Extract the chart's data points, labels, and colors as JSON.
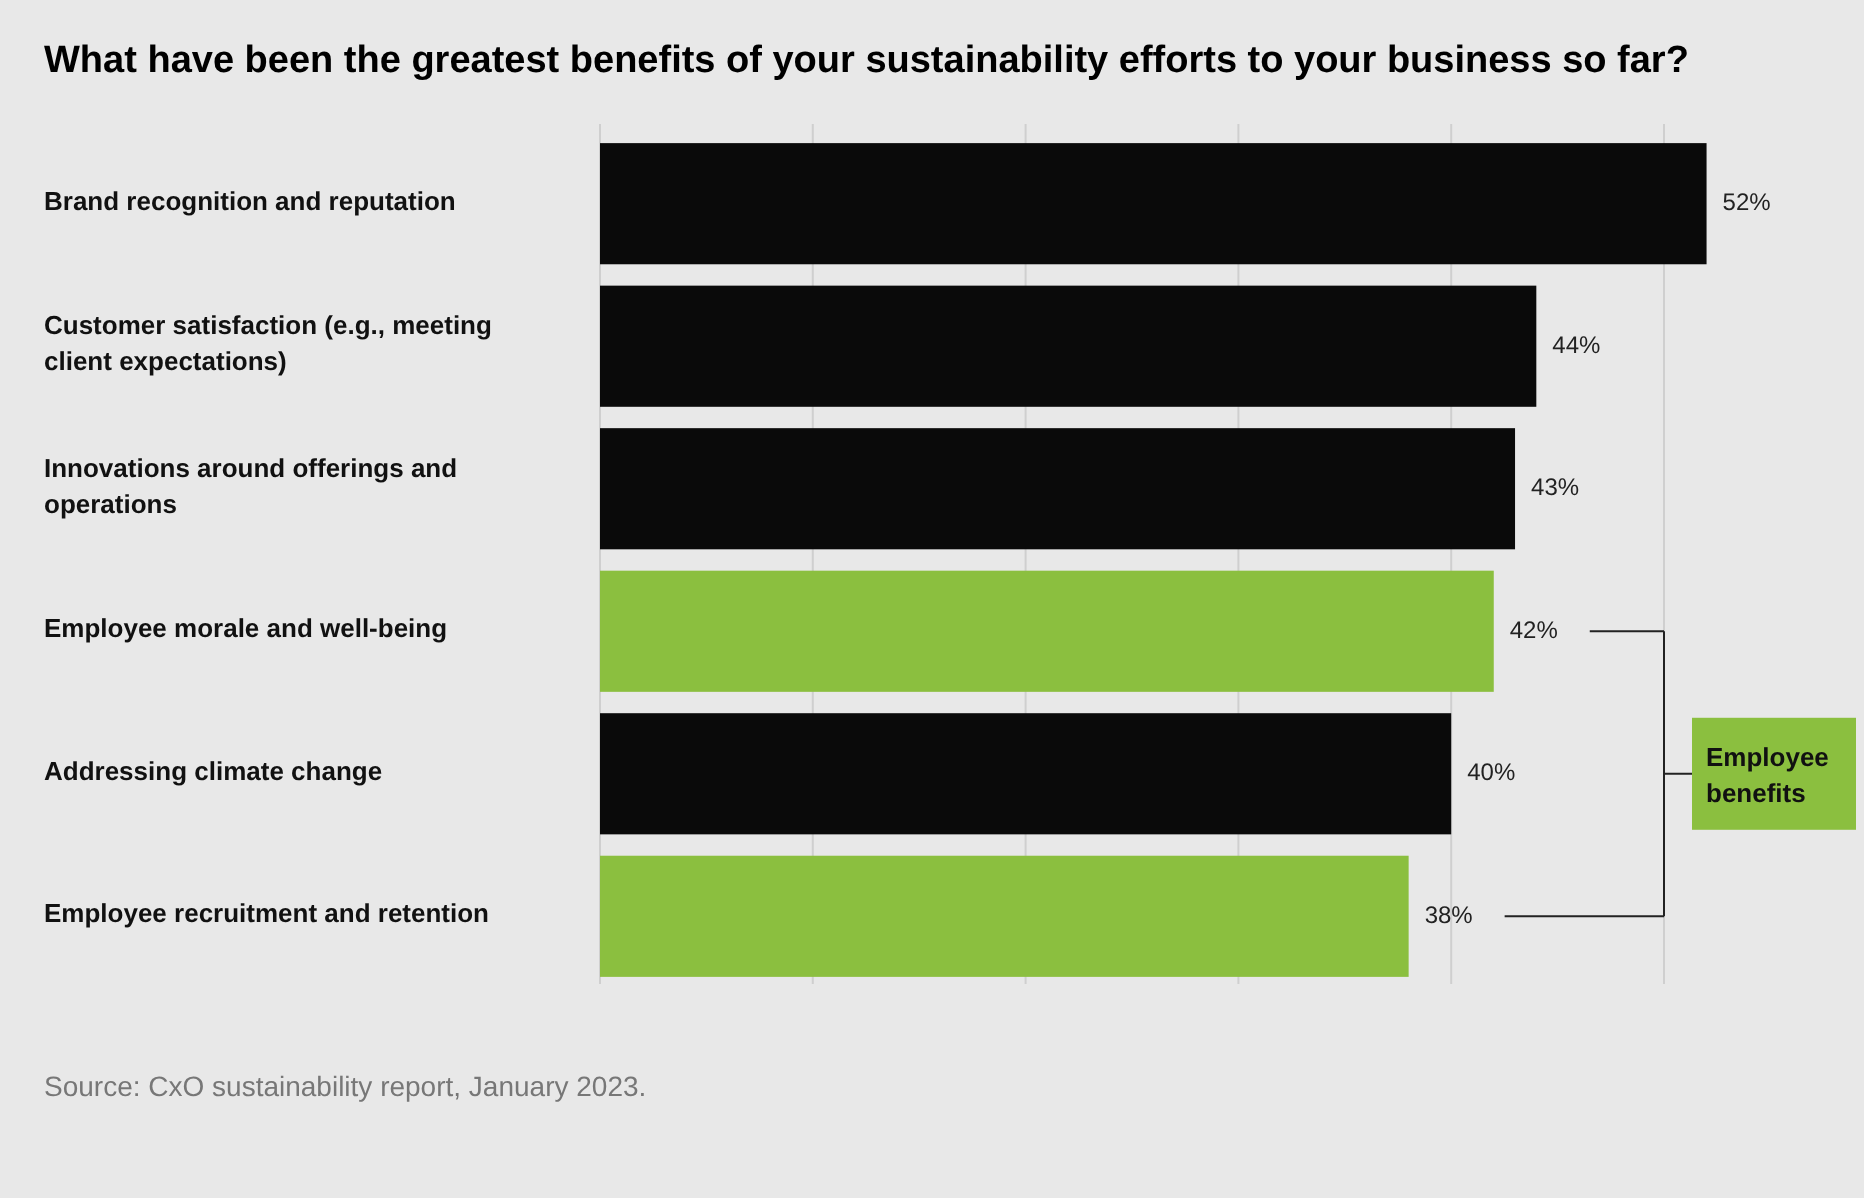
{
  "chart_data": {
    "type": "bar",
    "orientation": "horizontal",
    "title": "What have been the greatest benefits of your sustainability efforts to your business so far?",
    "categories": [
      "Brand recognition and reputation",
      "Customer satisfaction (e.g., meeting client expectations)",
      "Innovations around offerings and operations",
      "Employee morale and well-being",
      "Addressing climate change",
      "Employee recruitment and retention"
    ],
    "values": [
      52,
      44,
      43,
      42,
      40,
      38
    ],
    "colors": [
      "#0a0a0a",
      "#0a0a0a",
      "#0a0a0a",
      "#8bbf3f",
      "#0a0a0a",
      "#8bbf3f"
    ],
    "value_labels": [
      "52%",
      "44%",
      "43%",
      "42%",
      "40%",
      "38%"
    ],
    "xticks": [
      {
        "value": 0,
        "label": null
      },
      {
        "value": 10,
        "label": null
      },
      {
        "value": 20,
        "label": null
      },
      {
        "value": 30,
        "label": null
      },
      {
        "value": 40,
        "label": null
      },
      {
        "value": 50,
        "label": null
      }
    ],
    "grid": "x",
    "annotations": [
      "Employee benefits",
      "Source: CxO sustainability report, January 2023."
    ]
  }
}
